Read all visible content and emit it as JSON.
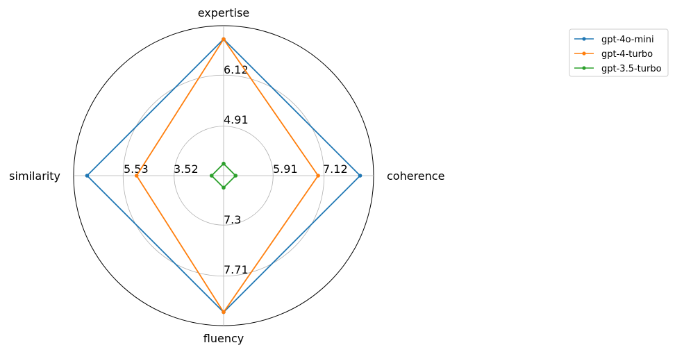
{
  "chart_data": {
    "type": "radar",
    "axes": [
      "expertise",
      "coherence",
      "fluency",
      "similarity"
    ],
    "axis_tick_labels": {
      "expertise": [
        "4.91",
        "6.12"
      ],
      "coherence": [
        "5.91",
        "7.12"
      ],
      "fluency": [
        "7.3",
        "7.71"
      ],
      "similarity": [
        "3.52",
        "5.53"
      ]
    },
    "series": [
      {
        "name": "gpt-4o-mini",
        "color": "#1f77b4",
        "values": [
          0.91,
          0.91,
          0.91,
          0.91
        ]
      },
      {
        "name": "gpt-4-turbo",
        "color": "#ff7f0e",
        "values": [
          0.91,
          0.63,
          0.91,
          0.58
        ]
      },
      {
        "name": "gpt-3.5-turbo",
        "color": "#2ca02c",
        "values": [
          0.08,
          0.08,
          0.08,
          0.08
        ]
      }
    ],
    "grid_levels": [
      0.33,
      0.67,
      1.0
    ],
    "legend_position": "upper-right-outside"
  }
}
